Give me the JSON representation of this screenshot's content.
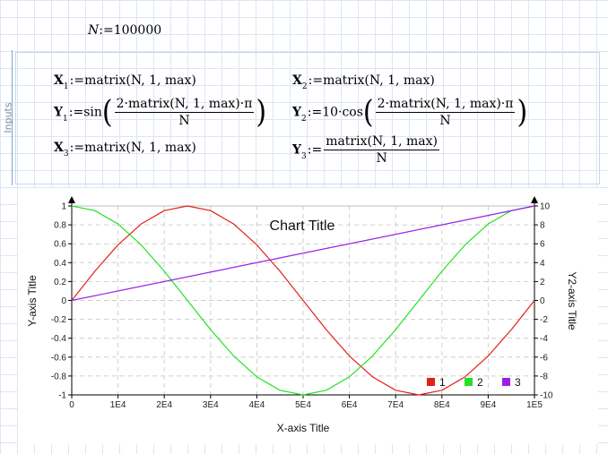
{
  "worksheet": {
    "n_def": {
      "lhs": "N",
      "op": ":=",
      "rhs": "100000"
    },
    "region_label": "Inputs",
    "defs": [
      {
        "var": "X",
        "sub": "1",
        "op": ":=",
        "expr": "matrix(N, 1, max)"
      },
      {
        "var": "Y",
        "sub": "1",
        "op": ":=",
        "func": "sin",
        "num": "2·matrix(N, 1, max)·π",
        "den": "N"
      },
      {
        "var": "X",
        "sub": "3",
        "op": ":=",
        "expr": "matrix(N, 1, max)"
      },
      {
        "var": "X",
        "sub": "2",
        "op": ":=",
        "expr": "matrix(N, 1, max)"
      },
      {
        "var": "Y",
        "sub": "2",
        "op": ":=",
        "func": "10·cos",
        "num": "2·matrix(N, 1, max)·π",
        "den": "N"
      },
      {
        "var": "Y",
        "sub": "3",
        "op": ":=",
        "num": "matrix(N, 1, max)",
        "den": "N"
      }
    ]
  },
  "chart_data": {
    "type": "line",
    "title": "Chart Title",
    "xlabel": "X-axis Title",
    "ylabel": "Y-axis Title",
    "y2label": "Y2-axis Title",
    "xlim": [
      0,
      100000
    ],
    "ylim": [
      -1,
      1
    ],
    "y2lim": [
      -10,
      10
    ],
    "x_ticks": [
      "0",
      "1E4",
      "2E4",
      "3E4",
      "4E4",
      "5E4",
      "6E4",
      "7E4",
      "8E4",
      "9E4",
      "1E5"
    ],
    "y_ticks": [
      "-1",
      "-0.8",
      "-0.6",
      "-0.4",
      "-0.2",
      "0",
      "0.2",
      "0.4",
      "0.6",
      "0.8",
      "1"
    ],
    "y2_ticks": [
      "-10",
      "-8",
      "-6",
      "-4",
      "-2",
      "0",
      "2",
      "4",
      "6",
      "8",
      "10"
    ],
    "grid": true,
    "legend_position": "bottom-right",
    "series": [
      {
        "name": "1",
        "color": "#e0201b",
        "axis": "y1",
        "x": [
          0,
          5000,
          10000,
          15000,
          20000,
          25000,
          30000,
          35000,
          40000,
          45000,
          50000,
          55000,
          60000,
          65000,
          70000,
          75000,
          80000,
          85000,
          90000,
          95000,
          100000
        ],
        "y": [
          0,
          0.309,
          0.588,
          0.809,
          0.951,
          1,
          0.951,
          0.809,
          0.588,
          0.309,
          0,
          -0.309,
          -0.588,
          -0.809,
          -0.951,
          -1,
          -0.951,
          -0.809,
          -0.588,
          -0.309,
          0
        ]
      },
      {
        "name": "2",
        "color": "#22e322",
        "axis": "y2",
        "x": [
          0,
          5000,
          10000,
          15000,
          20000,
          25000,
          30000,
          35000,
          40000,
          45000,
          50000,
          55000,
          60000,
          65000,
          70000,
          75000,
          80000,
          85000,
          90000,
          95000,
          100000
        ],
        "y": [
          10,
          9.51,
          8.09,
          5.88,
          3.09,
          0,
          -3.09,
          -5.88,
          -8.09,
          -9.51,
          -10,
          -9.51,
          -8.09,
          -5.88,
          -3.09,
          0,
          3.09,
          5.88,
          8.09,
          9.51,
          10
        ]
      },
      {
        "name": "3",
        "color": "#9a1fe6",
        "axis": "y1",
        "x": [
          0,
          100000
        ],
        "y": [
          0,
          1
        ]
      }
    ]
  }
}
